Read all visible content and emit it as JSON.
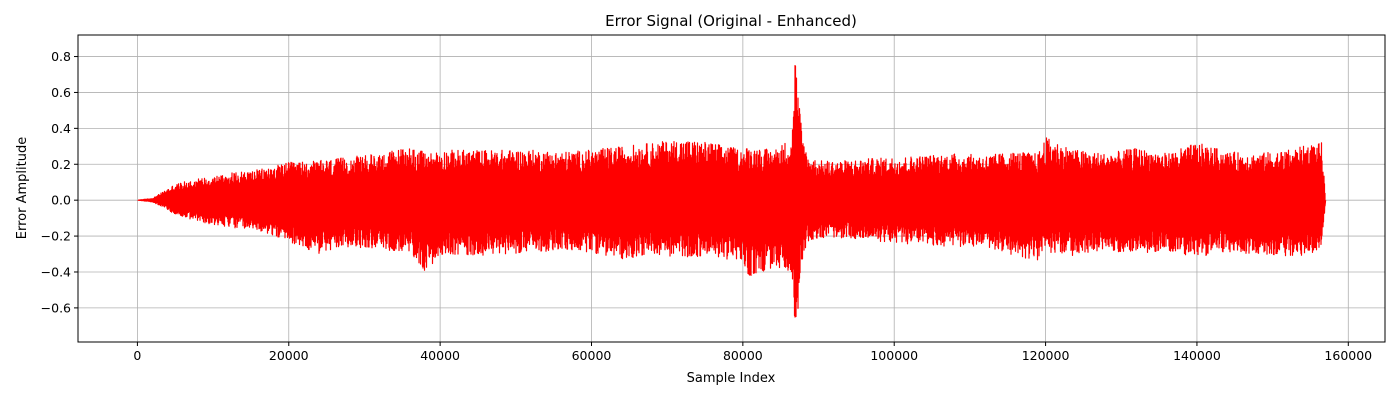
{
  "chart_data": {
    "type": "line",
    "title": "Error Signal (Original - Enhanced)",
    "xlabel": "Sample Index",
    "ylabel": "Error Amplitude",
    "xlim": [
      -7850,
      164850
    ],
    "ylim": [
      -0.79,
      0.92
    ],
    "xticks": [
      0,
      20000,
      40000,
      60000,
      80000,
      100000,
      120000,
      140000,
      160000
    ],
    "xtick_labels": [
      "0",
      "20000",
      "40000",
      "60000",
      "80000",
      "100000",
      "120000",
      "140000",
      "160000"
    ],
    "yticks": [
      -0.6,
      -0.4,
      -0.2,
      0.0,
      0.2,
      0.4,
      0.6,
      0.8
    ],
    "ytick_labels": [
      "−0.6",
      "−0.4",
      "−0.2",
      "0.0",
      "0.2",
      "0.4",
      "0.6",
      "0.8"
    ],
    "grid": true,
    "series": [
      {
        "color": "#ff0000",
        "x_range": [
          0,
          157000
        ],
        "envelope": {
          "x": [
            0,
            2000,
            3500,
            5000,
            8000,
            12000,
            16000,
            20000,
            24000,
            28000,
            32000,
            36000,
            38300,
            40000,
            44000,
            48000,
            52000,
            56000,
            60000,
            64000,
            68000,
            72000,
            76000,
            80000,
            80700,
            84000,
            86500,
            86900,
            87300,
            87800,
            88500,
            90000,
            93000,
            96000,
            100000,
            104000,
            108000,
            112000,
            116000,
            119000,
            120000,
            124000,
            128000,
            132000,
            136000,
            140000,
            144000,
            148000,
            152000,
            155000,
            156500,
            157000
          ],
          "max": [
            0.0,
            0.01,
            0.05,
            0.09,
            0.12,
            0.15,
            0.17,
            0.21,
            0.22,
            0.24,
            0.26,
            0.3,
            0.26,
            0.28,
            0.28,
            0.28,
            0.28,
            0.27,
            0.28,
            0.3,
            0.32,
            0.34,
            0.32,
            0.28,
            0.3,
            0.28,
            0.35,
            0.83,
            0.6,
            0.4,
            0.25,
            0.22,
            0.22,
            0.23,
            0.24,
            0.25,
            0.26,
            0.25,
            0.27,
            0.26,
            0.35,
            0.28,
            0.26,
            0.29,
            0.26,
            0.32,
            0.27,
            0.26,
            0.28,
            0.31,
            0.32,
            0.0
          ],
          "min": [
            0.0,
            -0.01,
            -0.04,
            -0.08,
            -0.12,
            -0.15,
            -0.17,
            -0.23,
            -0.3,
            -0.26,
            -0.27,
            -0.3,
            -0.41,
            -0.3,
            -0.31,
            -0.3,
            -0.29,
            -0.28,
            -0.29,
            -0.33,
            -0.3,
            -0.32,
            -0.31,
            -0.35,
            -0.43,
            -0.38,
            -0.4,
            -0.71,
            -0.6,
            -0.35,
            -0.23,
            -0.21,
            -0.21,
            -0.22,
            -0.24,
            -0.25,
            -0.26,
            -0.26,
            -0.31,
            -0.34,
            -0.29,
            -0.31,
            -0.28,
            -0.3,
            -0.28,
            -0.32,
            -0.29,
            -0.3,
            -0.31,
            -0.31,
            -0.25,
            0.0
          ]
        }
      }
    ]
  }
}
